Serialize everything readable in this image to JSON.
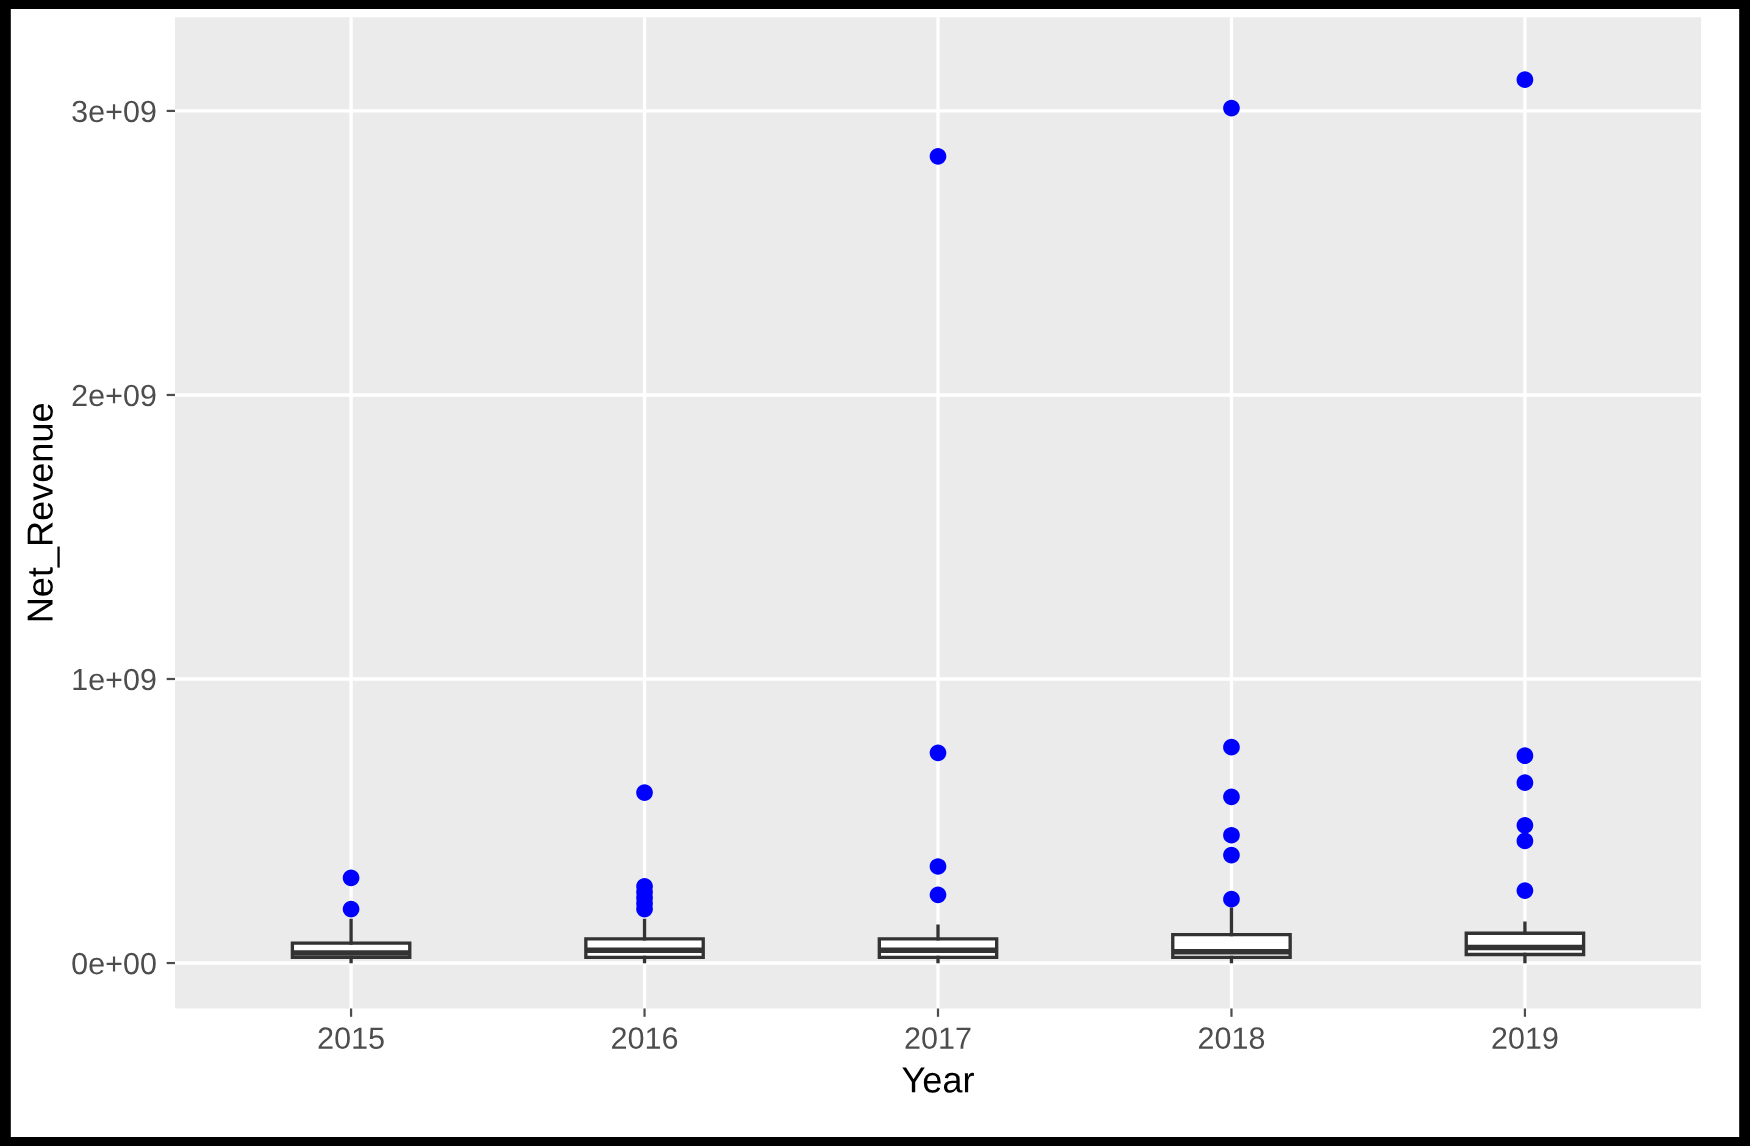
{
  "chart_data": {
    "type": "box",
    "xlabel": "Year",
    "ylabel": "Net_Revenue",
    "categories": [
      "2015",
      "2016",
      "2017",
      "2018",
      "2019"
    ],
    "boxes": [
      {
        "low": 5000000.0,
        "q1": 20000000.0,
        "median": 35000000.0,
        "q3": 70000000.0,
        "high": 150000000.0,
        "outliers": [
          300000000.0,
          190000000.0
        ]
      },
      {
        "low": 5000000.0,
        "q1": 20000000.0,
        "median": 45000000.0,
        "q3": 85000000.0,
        "high": 150000000.0,
        "outliers": [
          600000000.0,
          270000000.0,
          250000000.0,
          230000000.0,
          210000000.0,
          190000000.0
        ]
      },
      {
        "low": 5000000.0,
        "q1": 20000000.0,
        "median": 45000000.0,
        "q3": 85000000.0,
        "high": 130000000.0,
        "outliers": [
          2840000000.0,
          740000000.0,
          340000000.0,
          240000000.0
        ]
      },
      {
        "low": 5000000.0,
        "q1": 20000000.0,
        "median": 40000000.0,
        "q3": 100000000.0,
        "high": 190000000.0,
        "outliers": [
          3010000000.0,
          760000000.0,
          585000000.0,
          450000000.0,
          380000000.0,
          225000000.0
        ]
      },
      {
        "low": 5000000.0,
        "q1": 30000000.0,
        "median": 55000000.0,
        "q3": 105000000.0,
        "high": 140000000.0,
        "outliers": [
          3110000000.0,
          730000000.0,
          635000000.0,
          485000000.0,
          430000000.0,
          255000000.0
        ]
      }
    ],
    "ylim": [
      -160000000.0,
      3330000000.0
    ],
    "yticks": [
      {
        "value": 0,
        "label": "0e+00"
      },
      {
        "value": 1000000000.0,
        "label": "1e+09"
      },
      {
        "value": 2000000000.0,
        "label": "2e+09"
      },
      {
        "value": 3000000000.0,
        "label": "3e+09"
      }
    ],
    "grid": true
  }
}
